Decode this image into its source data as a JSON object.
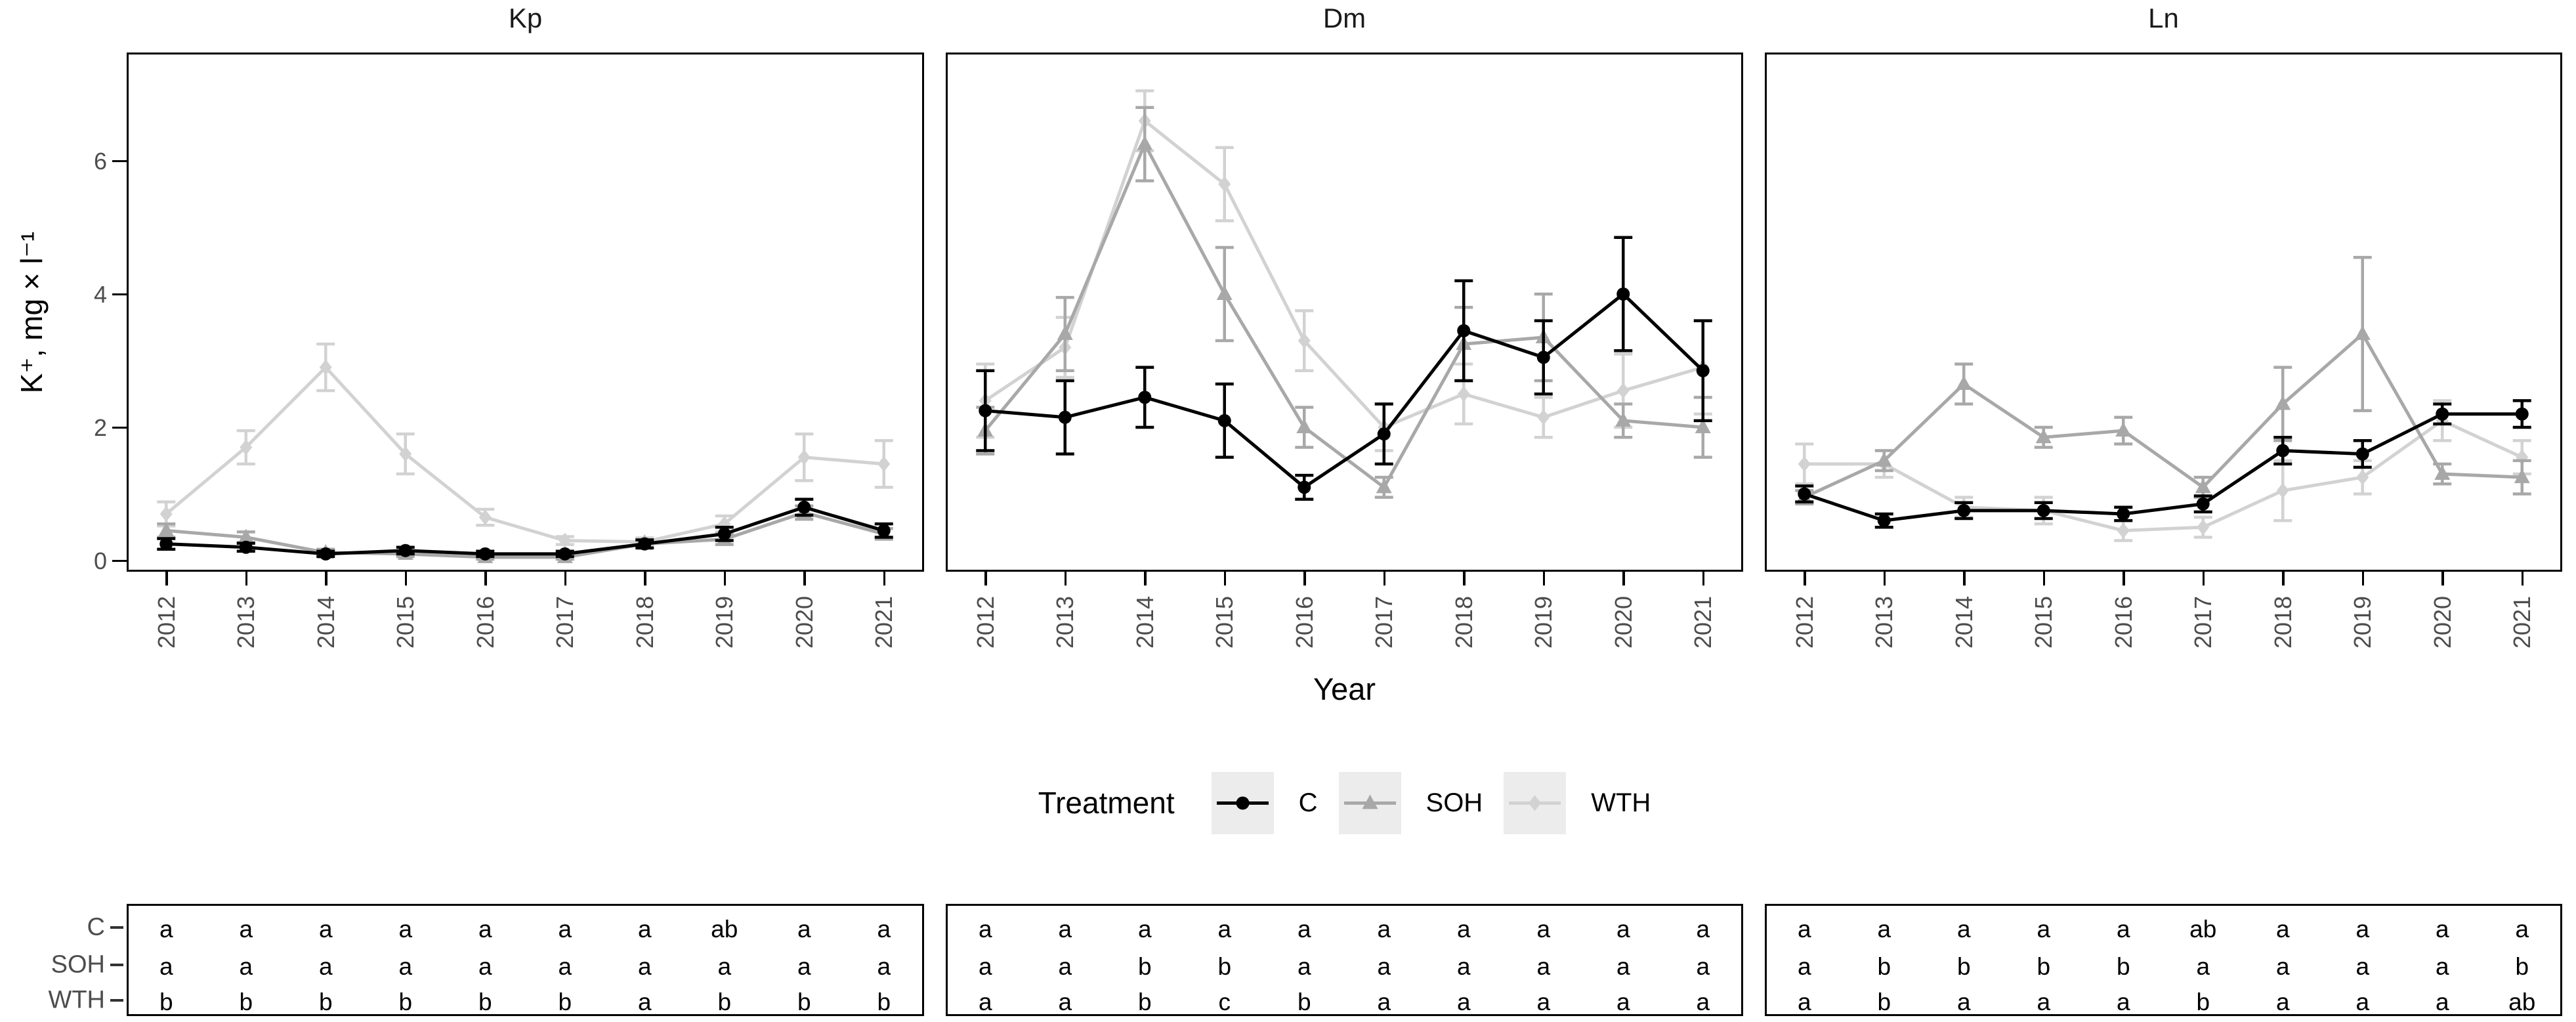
{
  "figure": {
    "y_axis_title": "K⁺, mg × l⁻¹",
    "x_axis_title": "Year",
    "y_ticks": [
      "0",
      "2",
      "4",
      "6"
    ],
    "years": [
      "2012",
      "2013",
      "2014",
      "2015",
      "2016",
      "2017",
      "2018",
      "2019",
      "2020",
      "2021"
    ],
    "legend": {
      "title": "Treatment",
      "key_background": "#ececec",
      "items": [
        {
          "label": "C",
          "color": "#000000",
          "marker": "circle"
        },
        {
          "label": "SOH",
          "color": "#a8a8a8",
          "marker": "triangle"
        },
        {
          "label": "WTH",
          "color": "#d2d2d2",
          "marker": "diamond"
        }
      ]
    },
    "colors": {
      "axis_text": "#4d4d4d",
      "panel_border": "#000000",
      "background": "#ffffff"
    }
  },
  "chart_data": [
    {
      "type": "line",
      "title": "Kp",
      "x": [
        2012,
        2013,
        2014,
        2015,
        2016,
        2017,
        2018,
        2019,
        2020,
        2021
      ],
      "xlabel": "Year",
      "ylabel": "K⁺, mg × l⁻¹",
      "ylim": [
        0,
        7.6
      ],
      "yticks": [
        0,
        2,
        4,
        6
      ],
      "grid": false,
      "legend_position": "bottom",
      "series": [
        {
          "name": "C",
          "color": "#000000",
          "marker": "circle",
          "values": [
            0.25,
            0.2,
            0.1,
            0.15,
            0.1,
            0.1,
            0.25,
            0.4,
            0.8,
            0.45
          ],
          "errors": [
            0.08,
            0.06,
            0.04,
            0.05,
            0.04,
            0.04,
            0.06,
            0.1,
            0.12,
            0.1
          ]
        },
        {
          "name": "SOH",
          "color": "#a8a8a8",
          "marker": "triangle",
          "values": [
            0.45,
            0.35,
            0.12,
            0.1,
            0.05,
            0.05,
            0.25,
            0.32,
            0.72,
            0.4
          ],
          "errors": [
            0.1,
            0.08,
            0.05,
            0.04,
            0.03,
            0.03,
            0.06,
            0.08,
            0.1,
            0.08
          ]
        },
        {
          "name": "WTH",
          "color": "#d2d2d2",
          "marker": "diamond",
          "values": [
            0.7,
            1.7,
            2.9,
            1.6,
            0.65,
            0.3,
            0.28,
            0.55,
            1.55,
            1.45
          ],
          "errors": [
            0.18,
            0.25,
            0.35,
            0.3,
            0.12,
            0.06,
            0.06,
            0.12,
            0.35,
            0.35
          ]
        }
      ]
    },
    {
      "type": "line",
      "title": "Dm",
      "x": [
        2012,
        2013,
        2014,
        2015,
        2016,
        2017,
        2018,
        2019,
        2020,
        2021
      ],
      "xlabel": "Year",
      "ylabel": "K⁺, mg × l⁻¹",
      "ylim": [
        0,
        7.6
      ],
      "yticks": [
        0,
        2,
        4,
        6
      ],
      "grid": false,
      "legend_position": "bottom",
      "series": [
        {
          "name": "C",
          "color": "#000000",
          "marker": "circle",
          "values": [
            2.25,
            2.15,
            2.45,
            2.1,
            1.1,
            1.9,
            3.45,
            3.05,
            4.0,
            2.85
          ],
          "errors": [
            0.6,
            0.55,
            0.45,
            0.55,
            0.18,
            0.45,
            0.75,
            0.55,
            0.85,
            0.75
          ]
        },
        {
          "name": "SOH",
          "color": "#a8a8a8",
          "marker": "triangle",
          "values": [
            1.95,
            3.4,
            6.25,
            4.0,
            2.0,
            1.1,
            3.25,
            3.35,
            2.1,
            2.0
          ],
          "errors": [
            0.35,
            0.55,
            0.55,
            0.7,
            0.3,
            0.15,
            0.55,
            0.65,
            0.25,
            0.45
          ]
        },
        {
          "name": "WTH",
          "color": "#d2d2d2",
          "marker": "diamond",
          "values": [
            2.4,
            3.2,
            6.6,
            5.65,
            3.3,
            2.0,
            2.5,
            2.15,
            2.55,
            2.9
          ],
          "errors": [
            0.55,
            0.45,
            0.45,
            0.55,
            0.45,
            0.35,
            0.45,
            0.3,
            0.55,
            0.7
          ]
        }
      ]
    },
    {
      "type": "line",
      "title": "Ln",
      "x": [
        2012,
        2013,
        2014,
        2015,
        2016,
        2017,
        2018,
        2019,
        2020,
        2021
      ],
      "xlabel": "Year",
      "ylabel": "K⁺, mg × l⁻¹",
      "ylim": [
        0,
        7.6
      ],
      "yticks": [
        0,
        2,
        4,
        6
      ],
      "grid": false,
      "legend_position": "bottom",
      "series": [
        {
          "name": "C",
          "color": "#000000",
          "marker": "circle",
          "values": [
            1.0,
            0.6,
            0.75,
            0.75,
            0.7,
            0.85,
            1.65,
            1.6,
            2.2,
            2.2
          ],
          "errors": [
            0.12,
            0.1,
            0.12,
            0.12,
            0.1,
            0.12,
            0.2,
            0.2,
            0.15,
            0.2
          ]
        },
        {
          "name": "SOH",
          "color": "#a8a8a8",
          "marker": "triangle",
          "values": [
            0.95,
            1.5,
            2.65,
            1.85,
            1.95,
            1.1,
            2.35,
            3.4,
            1.3,
            1.25
          ],
          "errors": [
            0.1,
            0.15,
            0.3,
            0.15,
            0.2,
            0.15,
            0.55,
            1.15,
            0.15,
            0.25
          ]
        },
        {
          "name": "WTH",
          "color": "#d2d2d2",
          "marker": "diamond",
          "values": [
            1.45,
            1.45,
            0.8,
            0.75,
            0.45,
            0.5,
            1.05,
            1.25,
            2.1,
            1.55
          ],
          "errors": [
            0.3,
            0.2,
            0.15,
            0.2,
            0.15,
            0.15,
            0.45,
            0.25,
            0.3,
            0.25
          ]
        }
      ]
    }
  ],
  "letters": {
    "row_labels": [
      "C",
      "SOH",
      "WTH"
    ],
    "panels": [
      {
        "title": "Kp",
        "rows": [
          [
            "a",
            "a",
            "a",
            "a",
            "a",
            "a",
            "a",
            "ab",
            "a",
            "a"
          ],
          [
            "a",
            "a",
            "a",
            "a",
            "a",
            "a",
            "a",
            "a",
            "a",
            "a"
          ],
          [
            "b",
            "b",
            "b",
            "b",
            "b",
            "b",
            "a",
            "b",
            "b",
            "b"
          ]
        ]
      },
      {
        "title": "Dm",
        "rows": [
          [
            "a",
            "a",
            "a",
            "a",
            "a",
            "a",
            "a",
            "a",
            "a",
            "a"
          ],
          [
            "a",
            "a",
            "b",
            "b",
            "a",
            "a",
            "a",
            "a",
            "a",
            "a"
          ],
          [
            "a",
            "a",
            "b",
            "c",
            "b",
            "a",
            "a",
            "a",
            "a",
            "a"
          ]
        ]
      },
      {
        "title": "Ln",
        "rows": [
          [
            "a",
            "a",
            "a",
            "a",
            "a",
            "ab",
            "a",
            "a",
            "a",
            "a"
          ],
          [
            "a",
            "b",
            "b",
            "b",
            "b",
            "a",
            "a",
            "a",
            "a",
            "b"
          ],
          [
            "a",
            "b",
            "a",
            "a",
            "a",
            "b",
            "a",
            "a",
            "a",
            "ab"
          ]
        ]
      }
    ]
  }
}
